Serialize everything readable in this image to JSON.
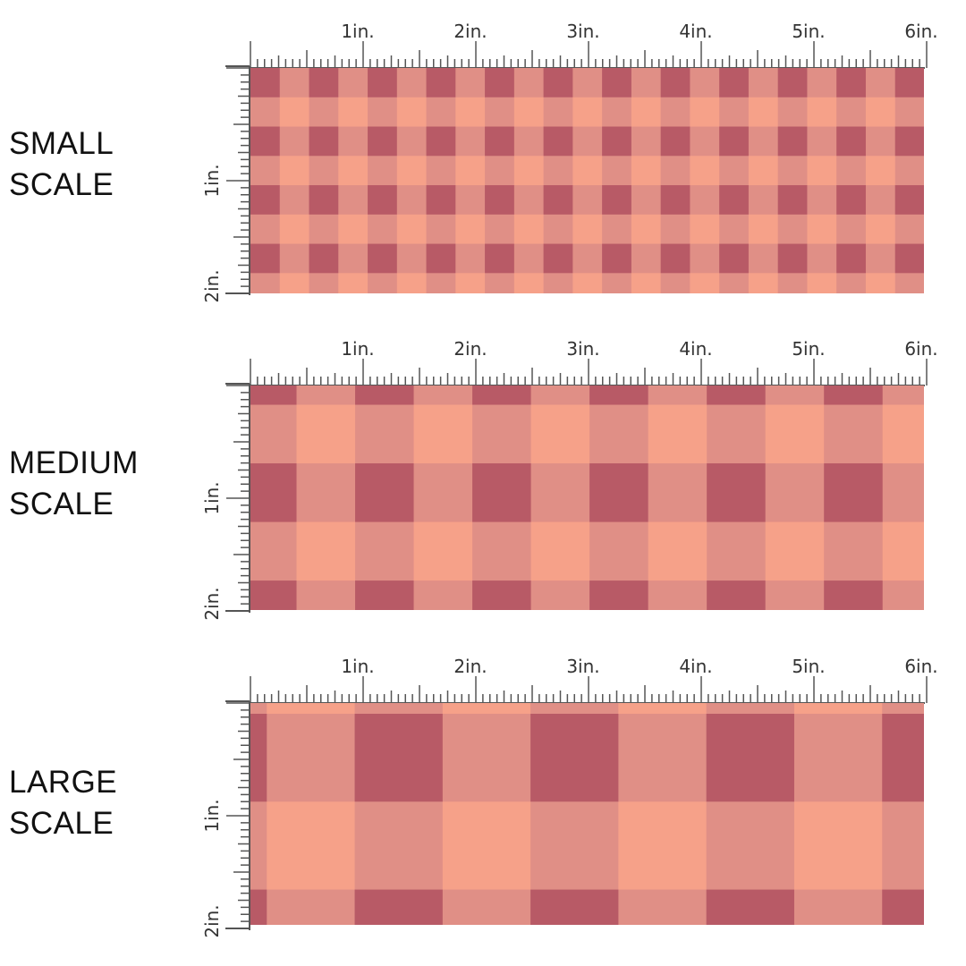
{
  "colors": {
    "light": "#f6a189",
    "mid": "#e08f86",
    "dark": "#b85a66",
    "ruler": "#555555"
  },
  "ruler_labels": {
    "horizontal": [
      "1in.",
      "2in.",
      "3in.",
      "4in.",
      "5in.",
      "6in."
    ],
    "vertical": [
      "1in.",
      "2in."
    ]
  },
  "sections": [
    {
      "id": "small",
      "label_lines": [
        "SMALL",
        "SCALE"
      ],
      "check_size_in": 0.26
    },
    {
      "id": "medium",
      "label_lines": [
        "MEDIUM",
        "SCALE"
      ],
      "check_size_in": 0.52
    },
    {
      "id": "large",
      "label_lines": [
        "LARGE",
        "SCALE"
      ],
      "check_size_in": 0.78
    }
  ]
}
